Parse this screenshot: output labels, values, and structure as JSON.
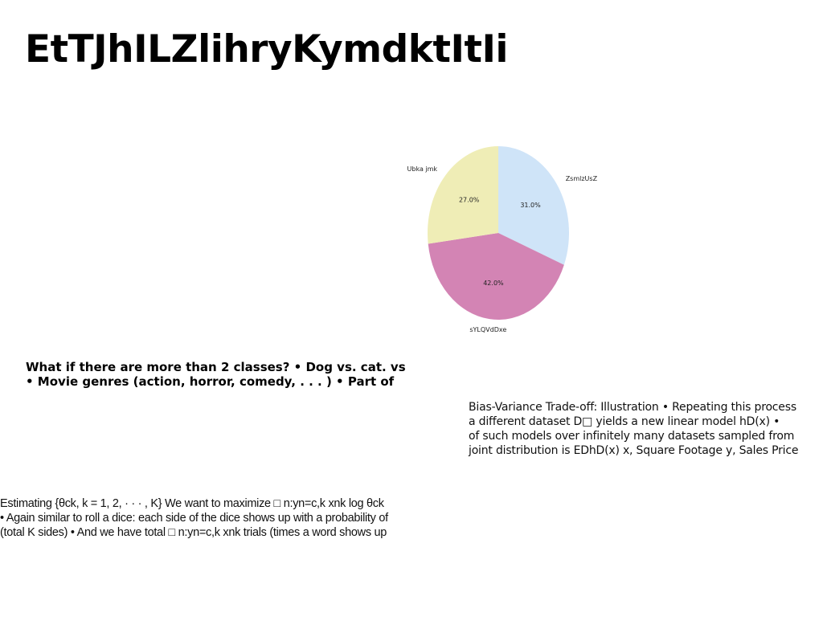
{
  "page": {
    "title": "EtTJhILZlihryKymdktItIi"
  },
  "chart_data": {
    "type": "pie",
    "labels": [
      "ZsmlzUsZ",
      "sYLQVdDxe",
      "Ubka jmk"
    ],
    "values": [
      31.0,
      42.0,
      27.0
    ],
    "value_labels": [
      "31.0%",
      "42.0%",
      "27.0%"
    ],
    "colors": [
      "#cfe4f8",
      "#d384b4",
      "#efedb6"
    ],
    "start_angle": "12 o'clock",
    "direction": "clockwise"
  },
  "text_blocks": {
    "bold": [
      "What if there are more than 2 classes? • Dog vs. cat. vs",
      "• Movie genres (action, horror, comedy, . . . ) • Part of"
    ],
    "right": [
      "Bias-Variance Trade-off: Illustration • Repeating this process",
      "a different dataset D□ yields a new linear model hD(x) •",
      "of such models over infinitely many datasets sampled from",
      "joint distribution is EDhD(x) x, Square Footage y, Sales Price"
    ],
    "left": [
      "Estimating {θck, k = 1, 2, · · · , K} We want to maximize □ n:yn=c,k xnk log θck",
      "• Again similar to roll a dice: each side of the dice shows up with a probability of",
      "(total K sides) • And we have total □ n:yn=c,k xnk trials (times a word shows up"
    ]
  }
}
